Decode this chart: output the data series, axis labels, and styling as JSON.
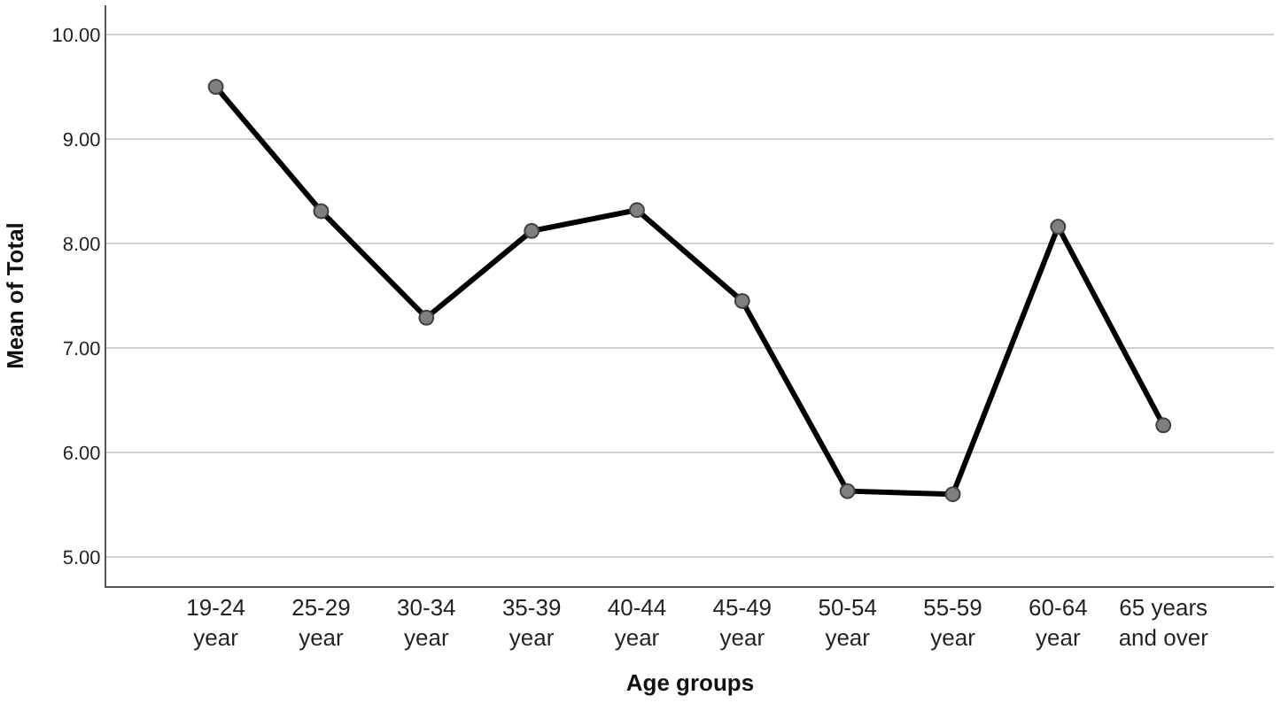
{
  "chart_data": {
    "type": "line",
    "xlabel": "Age groups",
    "ylabel": "Mean of Total",
    "categories": [
      "19-24 year",
      "25-29 year",
      "30-34 year",
      "35-39 year",
      "40-44 year",
      "45-49 year",
      "50-54 year",
      "55-59 year",
      "60-64 year",
      "65 years and over"
    ],
    "series": [
      {
        "color": "#000000",
        "values": [
          9.5,
          8.31,
          7.29,
          8.12,
          8.32,
          7.45,
          5.63,
          5.6,
          8.16,
          6.26
        ]
      }
    ],
    "ylim": [
      4.72,
      10.28
    ],
    "yticks": [
      {
        "value": 5,
        "label": "5.00"
      },
      {
        "value": 6,
        "label": "6.00"
      },
      {
        "value": 7,
        "label": "7.00"
      },
      {
        "value": 8,
        "label": "8.00"
      },
      {
        "value": 9,
        "label": "9.00"
      },
      {
        "value": 10,
        "label": "10.00"
      }
    ],
    "grid": "y",
    "marker": "circle",
    "line_style": "solid"
  }
}
